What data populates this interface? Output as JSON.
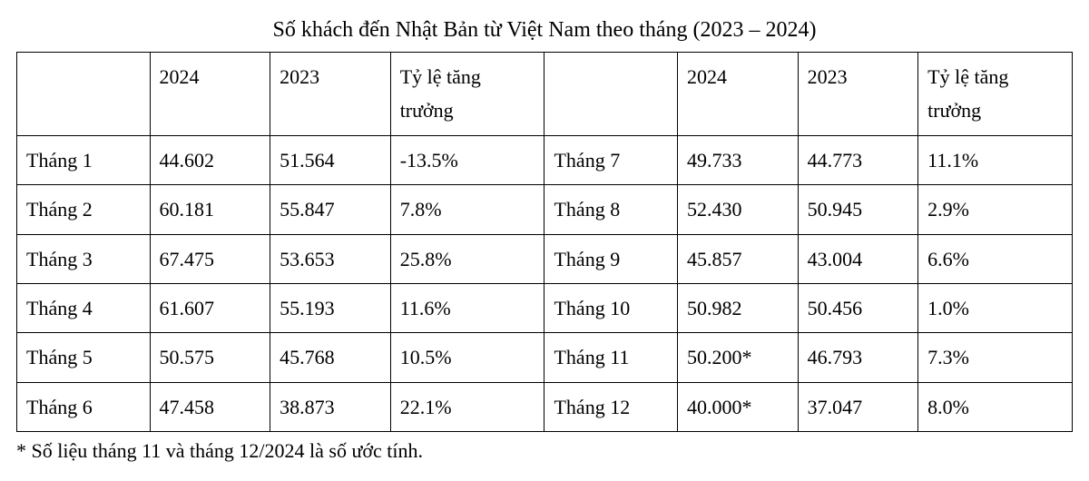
{
  "title": "Số khách đến Nhật Bản từ Việt Nam theo tháng (2023 – 2024)",
  "headers": {
    "blank": "",
    "y2024": "2024",
    "y2023": "2023",
    "growth": "Tỷ lệ tăng trưởng"
  },
  "rows": [
    {
      "left": {
        "month": "Tháng 1",
        "v2024": "44.602",
        "v2023": "51.564",
        "growth": "-13.5%"
      },
      "right": {
        "month": "Tháng 7",
        "v2024": "49.733",
        "v2023": "44.773",
        "growth": "11.1%"
      }
    },
    {
      "left": {
        "month": "Tháng 2",
        "v2024": "60.181",
        "v2023": "55.847",
        "growth": "7.8%"
      },
      "right": {
        "month": "Tháng 8",
        "v2024": "52.430",
        "v2023": "50.945",
        "growth": "2.9%"
      }
    },
    {
      "left": {
        "month": "Tháng 3",
        "v2024": "67.475",
        "v2023": "53.653",
        "growth": "25.8%"
      },
      "right": {
        "month": "Tháng 9",
        "v2024": "45.857",
        "v2023": "43.004",
        "growth": "6.6%"
      }
    },
    {
      "left": {
        "month": "Tháng 4",
        "v2024": "61.607",
        "v2023": "55.193",
        "growth": "11.6%"
      },
      "right": {
        "month": "Tháng 10",
        "v2024": "50.982",
        "v2023": "50.456",
        "growth": "1.0%"
      }
    },
    {
      "left": {
        "month": "Tháng 5",
        "v2024": "50.575",
        "v2023": "45.768",
        "growth": "10.5%"
      },
      "right": {
        "month": "Tháng 11",
        "v2024": "50.200*",
        "v2023": "46.793",
        "growth": "7.3%"
      }
    },
    {
      "left": {
        "month": "Tháng 6",
        "v2024": "47.458",
        "v2023": "38.873",
        "growth": "22.1%"
      },
      "right": {
        "month": "Tháng 12",
        "v2024": "40.000*",
        "v2023": "37.047",
        "growth": "8.0%"
      }
    }
  ],
  "footnote": "* Số liệu tháng 11 và tháng 12/2024 là số ước tính."
}
